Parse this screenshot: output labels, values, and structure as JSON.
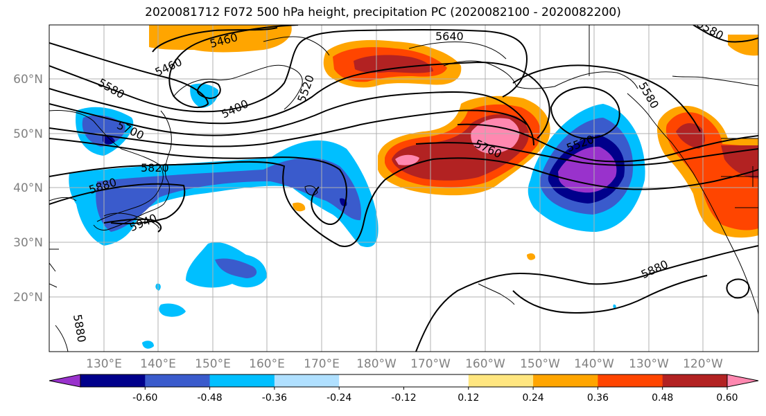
{
  "title": "2020081712 F072 500 hPa height, precipitation PC (2020082100 - 2020082200)",
  "lat_labels": [
    "60°N",
    "50°N",
    "40°N",
    "30°N",
    "20°N"
  ],
  "lon_labels": [
    "130°E",
    "140°E",
    "150°E",
    "160°E",
    "170°E",
    "180°W",
    "170°W",
    "160°W",
    "150°W",
    "140°W",
    "130°W",
    "120°W"
  ],
  "contour_levels": [
    "5460",
    "5460",
    "5400",
    "5520",
    "5640",
    "5580",
    "5580",
    "5580",
    "5700",
    "5820",
    "5880",
    "5940",
    "5760",
    "5520",
    "5880",
    "5880"
  ],
  "colorbar": {
    "colors": [
      "#9932cc",
      "#00008b",
      "#3a5bcc",
      "#00bfff",
      "#b0e0ff",
      "#ffffff",
      "#ffffff",
      "#ffe680",
      "#ffa500",
      "#ff4500",
      "#b22222",
      "#ff88b0"
    ],
    "tick_labels": [
      "-0.60",
      "-0.48",
      "-0.36",
      "-0.24",
      "-0.12",
      "0.12",
      "0.24",
      "0.36",
      "0.48",
      "0.60"
    ]
  }
}
